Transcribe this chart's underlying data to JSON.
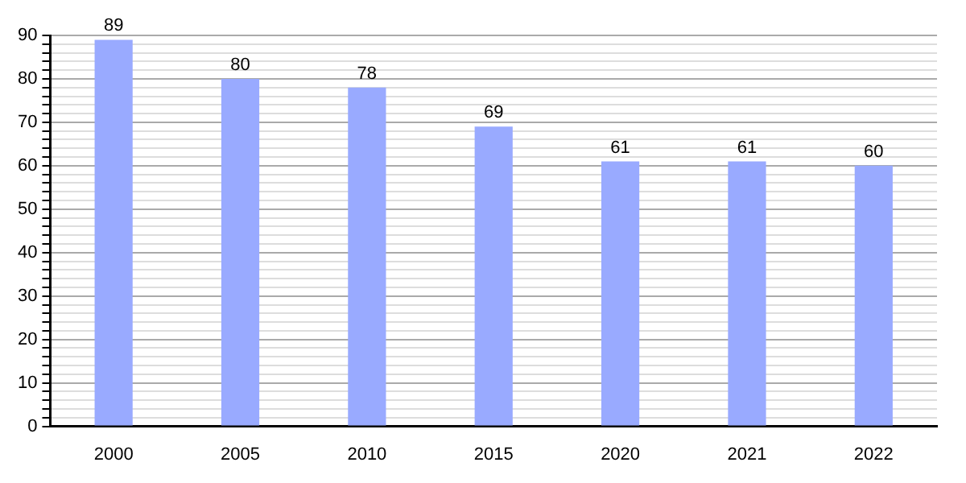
{
  "chart_data": {
    "type": "bar",
    "categories": [
      "2000",
      "2005",
      "2010",
      "2015",
      "2020",
      "2021",
      "2022"
    ],
    "values": [
      89,
      80,
      78,
      69,
      61,
      61,
      60
    ],
    "color": "#99aaff",
    "ylim": [
      0,
      90
    ],
    "yticks": [
      0,
      {
        "value": 2,
        "label": null
      },
      {
        "value": 4,
        "label": null
      },
      {
        "value": 6,
        "label": null
      },
      {
        "value": 8,
        "label": null
      },
      10,
      {
        "value": 12,
        "label": null
      },
      {
        "value": 14,
        "label": null
      },
      {
        "value": 16,
        "label": null
      },
      {
        "value": 18,
        "label": null
      },
      20,
      {
        "value": 22,
        "label": null
      },
      {
        "value": 24,
        "label": null
      },
      {
        "value": 26,
        "label": null
      },
      {
        "value": 28,
        "label": null
      },
      30,
      {
        "value": 32,
        "label": null
      },
      {
        "value": 34,
        "label": null
      },
      {
        "value": 36,
        "label": null
      },
      {
        "value": 38,
        "label": null
      },
      40,
      {
        "value": 42,
        "label": null
      },
      {
        "value": 44,
        "label": null
      },
      {
        "value": 46,
        "label": null
      },
      {
        "value": 48,
        "label": null
      },
      50,
      {
        "value": 52,
        "label": null
      },
      {
        "value": 54,
        "label": null
      },
      {
        "value": 56,
        "label": null
      },
      {
        "value": 58,
        "label": null
      },
      60,
      {
        "value": 62,
        "label": null
      },
      {
        "value": 64,
        "label": null
      },
      {
        "value": 66,
        "label": null
      },
      {
        "value": 68,
        "label": null
      },
      70,
      {
        "value": 72,
        "label": null
      },
      {
        "value": 74,
        "label": null
      },
      {
        "value": 76,
        "label": null
      },
      {
        "value": 78,
        "label": null
      },
      80,
      {
        "value": 82,
        "label": null
      },
      {
        "value": 84,
        "label": null
      },
      {
        "value": 86,
        "label": null
      },
      {
        "value": 88,
        "label": null
      },
      90
    ],
    "grid": "y",
    "data_labels": true,
    "legend": false
  }
}
